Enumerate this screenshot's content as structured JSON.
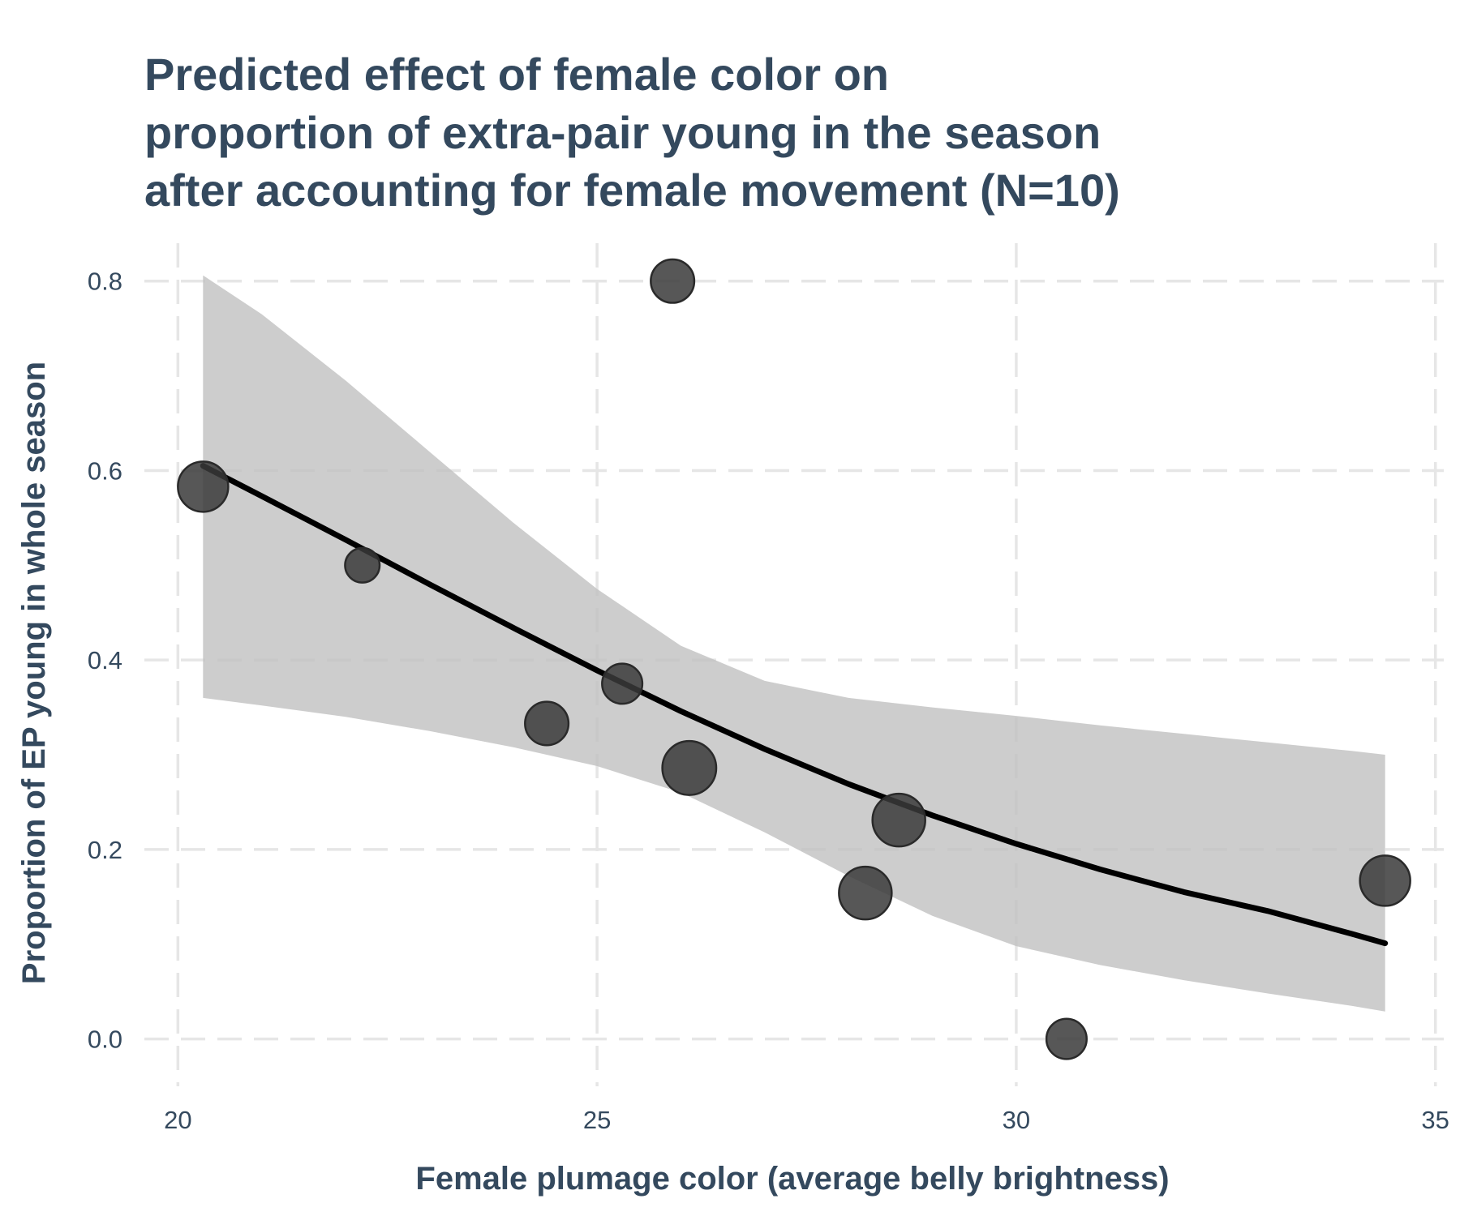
{
  "chart_data": {
    "type": "scatter",
    "title_lines": [
      "Predicted effect of female color on",
      "proportion of extra-pair young in the season",
      "after accounting for female movement (N=10)"
    ],
    "xlabel": "Female plumage color (average belly brightness)",
    "ylabel": "Proportion of EP young in whole season",
    "xlim": [
      19.6,
      35.1
    ],
    "ylim": [
      -0.05,
      0.84
    ],
    "x_ticks": [
      20,
      25,
      30,
      35
    ],
    "x_tick_labels": [
      "20",
      "25",
      "30",
      "35"
    ],
    "y_ticks": [
      0.0,
      0.2,
      0.4,
      0.6,
      0.8
    ],
    "y_tick_labels": [
      "0.0",
      "0.2",
      "0.4",
      "0.6",
      "0.8"
    ],
    "grid": true,
    "point_color": "#3a3a3a",
    "band_color": "#c0c0c0",
    "line_color": "#000000",
    "points": [
      {
        "x": 20.3,
        "y": 0.583,
        "size": 3
      },
      {
        "x": 22.2,
        "y": 0.5,
        "size": 1
      },
      {
        "x": 24.4,
        "y": 0.333,
        "size": 2
      },
      {
        "x": 25.3,
        "y": 0.375,
        "size": 1.6
      },
      {
        "x": 25.9,
        "y": 0.8,
        "size": 2
      },
      {
        "x": 26.1,
        "y": 0.286,
        "size": 3.6
      },
      {
        "x": 28.2,
        "y": 0.154,
        "size": 3.4
      },
      {
        "x": 28.6,
        "y": 0.231,
        "size": 3.4
      },
      {
        "x": 30.6,
        "y": 0.0,
        "size": 1.6
      },
      {
        "x": 34.4,
        "y": 0.167,
        "size": 3
      }
    ],
    "fit": {
      "x": [
        20.3,
        21,
        22,
        23,
        24,
        25,
        26,
        27,
        28,
        29,
        30,
        31,
        32,
        33,
        34,
        34.4
      ],
      "y": [
        0.605,
        0.573,
        0.527,
        0.48,
        0.434,
        0.389,
        0.346,
        0.306,
        0.269,
        0.236,
        0.206,
        0.179,
        0.155,
        0.135,
        0.111,
        0.101
      ],
      "lower": [
        0.36,
        0.352,
        0.34,
        0.325,
        0.308,
        0.288,
        0.26,
        0.218,
        0.172,
        0.13,
        0.098,
        0.078,
        0.062,
        0.048,
        0.035,
        0.029
      ],
      "upper": [
        0.806,
        0.765,
        0.695,
        0.62,
        0.545,
        0.475,
        0.415,
        0.378,
        0.36,
        0.35,
        0.341,
        0.331,
        0.322,
        0.313,
        0.304,
        0.3
      ]
    }
  }
}
